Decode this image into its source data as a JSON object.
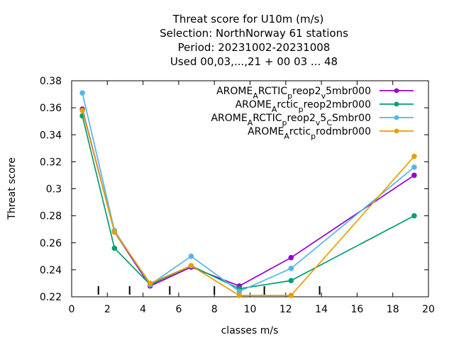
{
  "chart_data": {
    "type": "line",
    "title_lines": [
      "Threat score  for U10m (m/s)",
      "Selection: NorthNorway     61 stations",
      "Period: 20231002-20231008",
      "Used  00,03,...,21  + 00 03 ... 48"
    ],
    "xlabel": "classes m/s",
    "ylabel": "Threat score",
    "xlim": [
      0,
      20
    ],
    "ylim": [
      0.22,
      0.38
    ],
    "x_ticks": [
      "0",
      "2",
      "4",
      "6",
      "8",
      "10",
      "12",
      "14",
      "16",
      "18",
      "20"
    ],
    "y_ticks": [
      "0.22",
      "0.24",
      "0.26",
      "0.28",
      "0.3",
      "0.32",
      "0.34",
      "0.36",
      "0.38"
    ],
    "class_boundaries": [
      1.5,
      3.25,
      5.5,
      8.0,
      10.8,
      13.9
    ],
    "grid": false,
    "legend_position": "top-right",
    "series": [
      {
        "name": "AROME_ARCTIC_preop2_v5mbr000",
        "legend_parts": [
          "AROME",
          "A",
          "RCTIC",
          "p",
          "reop2",
          "v",
          "5mbr000"
        ],
        "color": "#9400d3",
        "x": [
          0.6,
          2.4,
          4.4,
          6.7,
          9.4,
          12.3,
          19.2
        ],
        "y": [
          0.359,
          0.268,
          0.228,
          0.242,
          0.228,
          0.249,
          0.31
        ]
      },
      {
        "name": "AROME_Arctic_preop2mbr000",
        "legend_parts": [
          "AROME",
          "A",
          "rctic",
          "p",
          "reop2mbr000"
        ],
        "color": "#009e73",
        "x": [
          0.6,
          2.4,
          4.4,
          6.7,
          9.4,
          12.3,
          19.2
        ],
        "y": [
          0.354,
          0.256,
          0.229,
          0.243,
          0.226,
          0.232,
          0.28
        ]
      },
      {
        "name": "AROME_ARCTIC_preop2_v5_CSmbr00",
        "legend_parts": [
          "AROME",
          "A",
          "RCTIC",
          "p",
          "reop2",
          "v",
          "5",
          "C",
          "Smbr00"
        ],
        "color": "#56b4e9",
        "x": [
          0.6,
          2.4,
          4.4,
          6.7,
          9.4,
          12.3,
          19.2
        ],
        "y": [
          0.371,
          0.269,
          0.229,
          0.25,
          0.224,
          0.241,
          0.316
        ]
      },
      {
        "name": "AROME_Arctic_prodmbr000",
        "legend_parts": [
          "AROME",
          "A",
          "rctic",
          "p",
          "rodmbr000"
        ],
        "color": "#e69f00",
        "x": [
          0.6,
          2.4,
          4.4,
          6.7,
          9.4,
          12.3,
          19.2
        ],
        "y": [
          0.358,
          0.268,
          0.23,
          0.243,
          0.221,
          0.221,
          0.324
        ]
      }
    ]
  }
}
